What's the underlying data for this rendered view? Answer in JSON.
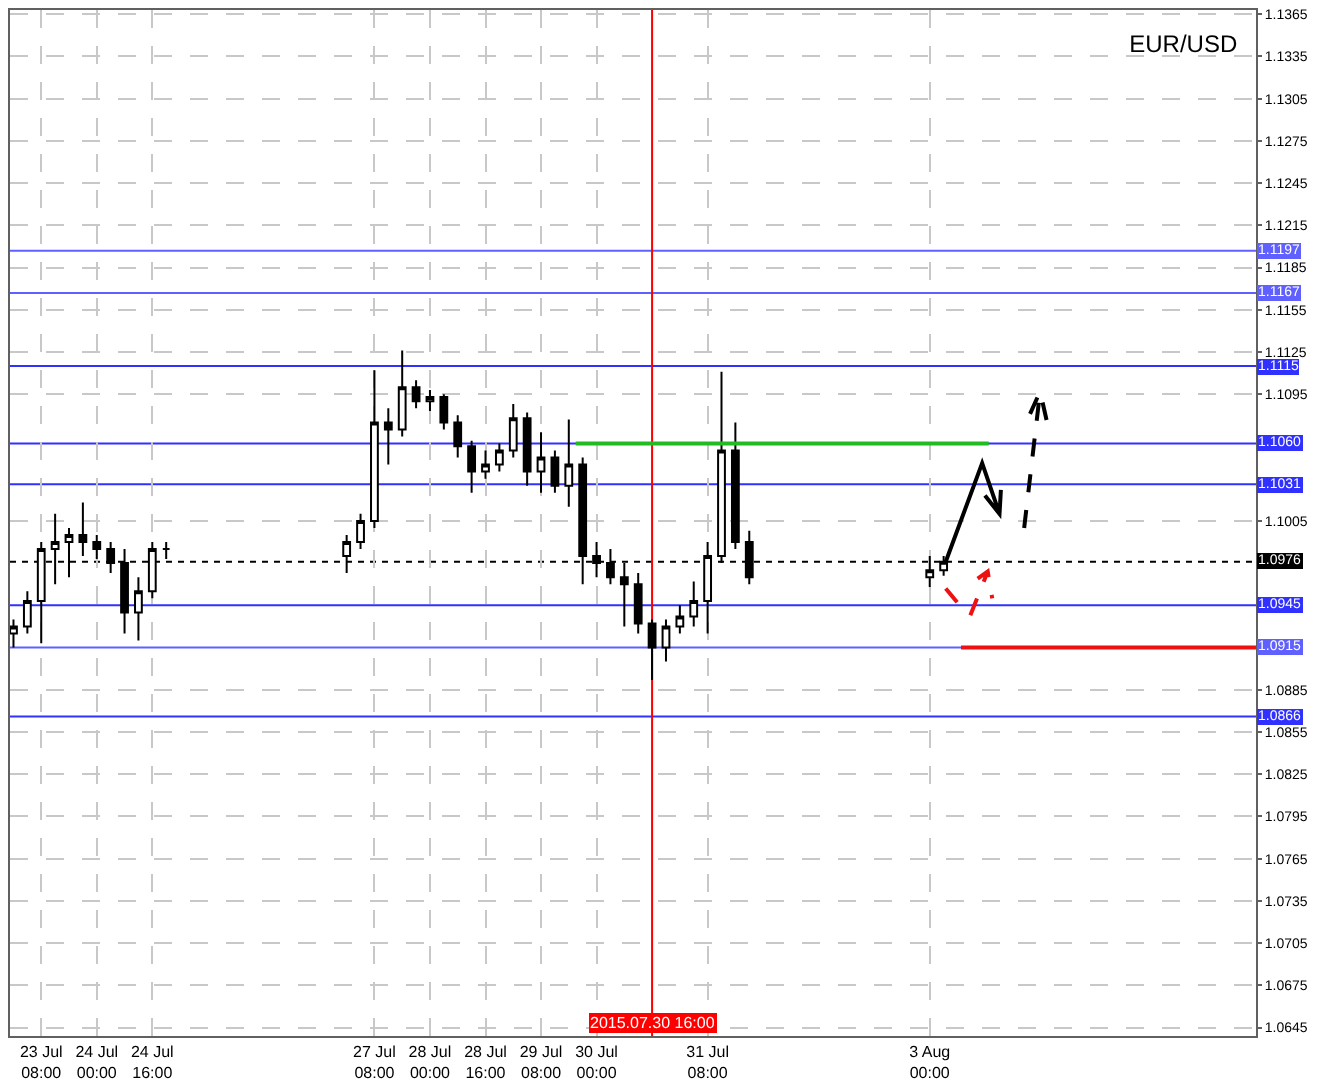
{
  "chart_data": {
    "type": "candlestick",
    "title": "EUR/USD",
    "color": "#000000",
    "x": [
      "2015-07-23T00:00",
      "2015-07-23T04:00",
      "2015-07-23T08:00",
      "2015-07-23T12:00",
      "2015-07-23T16:00",
      "2015-07-23T20:00",
      "2015-07-24T00:00",
      "2015-07-24T04:00",
      "2015-07-24T08:00",
      "2015-07-24T12:00",
      "2015-07-24T16:00",
      "2015-07-24T20:00",
      "2015-07-27T00:00",
      "2015-07-27T04:00",
      "2015-07-27T08:00",
      "2015-07-27T12:00",
      "2015-07-27T16:00",
      "2015-07-27T20:00",
      "2015-07-28T00:00",
      "2015-07-28T04:00",
      "2015-07-28T08:00",
      "2015-07-28T12:00",
      "2015-07-28T16:00",
      "2015-07-28T20:00",
      "2015-07-29T00:00",
      "2015-07-29T04:00",
      "2015-07-29T08:00",
      "2015-07-29T12:00",
      "2015-07-29T16:00",
      "2015-07-29T20:00",
      "2015-07-30T00:00",
      "2015-07-30T04:00",
      "2015-07-30T08:00",
      "2015-07-30T12:00",
      "2015-07-30T16:00",
      "2015-07-30T20:00",
      "2015-07-31T00:00",
      "2015-07-31T04:00",
      "2015-07-31T08:00",
      "2015-07-31T12:00",
      "2015-07-31T16:00",
      "2015-07-31T20:00",
      "2015-08-03T00:00",
      "2015-08-03T04:00"
    ],
    "ohlc": [
      [
        1.0925,
        1.0935,
        1.0915,
        1.093
      ],
      [
        1.093,
        1.0955,
        1.0925,
        1.0948
      ],
      [
        1.0948,
        1.099,
        1.0918,
        1.0985
      ],
      [
        1.0985,
        1.101,
        1.096,
        1.099
      ],
      [
        1.099,
        1.1,
        1.0965,
        1.0995
      ],
      [
        1.0995,
        1.1018,
        1.098,
        1.099
      ],
      [
        1.099,
        1.0995,
        1.0978,
        1.0985
      ],
      [
        1.0985,
        1.099,
        1.0968,
        1.0975
      ],
      [
        1.0975,
        1.0985,
        1.0925,
        1.094
      ],
      [
        1.094,
        1.0965,
        1.092,
        1.0955
      ],
      [
        1.0955,
        1.099,
        1.095,
        1.0985
      ],
      [
        1.0985,
        1.099,
        1.0978,
        1.0985
      ],
      [
        1.098,
        1.0995,
        1.0968,
        1.099
      ],
      [
        1.099,
        1.101,
        1.0985,
        1.1005
      ],
      [
        1.1005,
        1.1112,
        1.1,
        1.1075
      ],
      [
        1.1075,
        1.1085,
        1.1045,
        1.107
      ],
      [
        1.107,
        1.1126,
        1.1065,
        1.11
      ],
      [
        1.11,
        1.1105,
        1.1085,
        1.109
      ],
      [
        1.109,
        1.1098,
        1.1083,
        1.1093
      ],
      [
        1.1093,
        1.1095,
        1.107,
        1.1075
      ],
      [
        1.1075,
        1.108,
        1.105,
        1.1058
      ],
      [
        1.1058,
        1.1062,
        1.1025,
        1.104
      ],
      [
        1.104,
        1.1055,
        1.1035,
        1.1045
      ],
      [
        1.1045,
        1.106,
        1.104,
        1.1055
      ],
      [
        1.1055,
        1.1088,
        1.105,
        1.1078
      ],
      [
        1.1078,
        1.1082,
        1.103,
        1.104
      ],
      [
        1.104,
        1.1068,
        1.1025,
        1.105
      ],
      [
        1.105,
        1.1055,
        1.1025,
        1.103
      ],
      [
        1.103,
        1.1077,
        1.1015,
        1.1045
      ],
      [
        1.1045,
        1.105,
        1.096,
        1.098
      ],
      [
        1.098,
        1.099,
        1.0965,
        1.0975
      ],
      [
        1.0975,
        1.0985,
        1.096,
        1.0965
      ],
      [
        1.0965,
        1.0975,
        1.093,
        1.096
      ],
      [
        1.096,
        1.0968,
        1.0925,
        1.0932
      ],
      [
        1.0932,
        1.0935,
        1.0892,
        1.0915
      ],
      [
        1.0915,
        1.0935,
        1.0905,
        1.093
      ],
      [
        1.093,
        1.0945,
        1.0925,
        1.0937
      ],
      [
        1.0937,
        1.0962,
        1.093,
        1.0948
      ],
      [
        1.0948,
        1.099,
        1.0925,
        1.098
      ],
      [
        1.098,
        1.1111,
        1.0975,
        1.1055
      ],
      [
        1.1055,
        1.1075,
        1.0985,
        1.099
      ],
      [
        1.099,
        1.0998,
        1.096,
        1.0965
      ],
      [
        1.0965,
        1.098,
        1.0958,
        1.097
      ],
      [
        1.097,
        1.098,
        1.0966,
        1.0976
      ]
    ],
    "series": [
      {
        "type": "line",
        "color": "#22bb22",
        "line_style": "solid",
        "x": [
          "2015-07-29T18:00",
          "2015-08-03T17:00"
        ],
        "values": [
          1.106,
          1.106
        ]
      },
      {
        "type": "line",
        "color": "#ee1111",
        "line_style": "solid",
        "x": [
          "2015-08-03T09:00",
          "2015-08-06T22:00"
        ],
        "values": [
          1.0915,
          1.0915
        ]
      }
    ],
    "ref_lines": [
      {
        "axis": "y",
        "value": 1.1197,
        "label": "1.1197",
        "color": "#6060ff"
      },
      {
        "axis": "y",
        "value": 1.1167,
        "label": "1.1167",
        "color": "#6060ff"
      },
      {
        "axis": "y",
        "value": 1.1115,
        "label": "1.1115",
        "color": "#3030ff"
      },
      {
        "axis": "y",
        "value": 1.106,
        "label": "1.1060",
        "color": "#3030ff"
      },
      {
        "axis": "y",
        "value": 1.1031,
        "label": "1.1031",
        "color": "#3030ff"
      },
      {
        "axis": "y",
        "value": 1.0976,
        "label": "1.0976",
        "color": "#000000",
        "line_style": "dotted"
      },
      {
        "axis": "y",
        "value": 1.0945,
        "label": "1.0945",
        "color": "#3030ff"
      },
      {
        "axis": "y",
        "value": 1.0915,
        "label": "1.0915",
        "color": "#6060ff"
      },
      {
        "axis": "y",
        "value": 1.0866,
        "label": "1.0866",
        "color": "#3030ff"
      },
      {
        "axis": "x",
        "value": "2015-07-30T16:00",
        "label": "2015.07.30 16:00",
        "color": "#ff0000"
      }
    ],
    "xlim": [
      "2015-07-22T23:00",
      "2015-08-06T22:00"
    ],
    "xticks": [
      {
        "value": "2015-07-23T08:00",
        "label": "23 Jul 08:00"
      },
      {
        "value": "2015-07-24T00:00",
        "label": "24 Jul 00:00"
      },
      {
        "value": "2015-07-24T16:00",
        "label": "24 Jul 16:00"
      },
      {
        "value": "2015-07-27T08:00",
        "label": "27 Jul 08:00"
      },
      {
        "value": "2015-07-28T00:00",
        "label": "28 Jul 00:00"
      },
      {
        "value": "2015-07-28T16:00",
        "label": "28 Jul 16:00"
      },
      {
        "value": "2015-07-29T08:00",
        "label": "29 Jul 08:00"
      },
      {
        "value": "2015-07-30T00:00",
        "label": "30 Jul 00:00"
      },
      {
        "value": "2015-07-31T08:00",
        "label": "31 Jul 08:00"
      },
      {
        "value": "2015-08-03T00:00",
        "label": "3 Aug 00:00"
      }
    ],
    "ylim": [
      1.0639,
      1.1368
    ],
    "yticks": [
      1.0645,
      1.0675,
      1.0705,
      1.0735,
      1.0765,
      1.0795,
      1.0825,
      1.0855,
      1.0885,
      1.1005,
      1.1095,
      1.1125,
      1.1155,
      1.1185,
      1.1215,
      1.1245,
      1.1275,
      1.1305,
      1.1335,
      1.1365
    ],
    "grid": true
  }
}
